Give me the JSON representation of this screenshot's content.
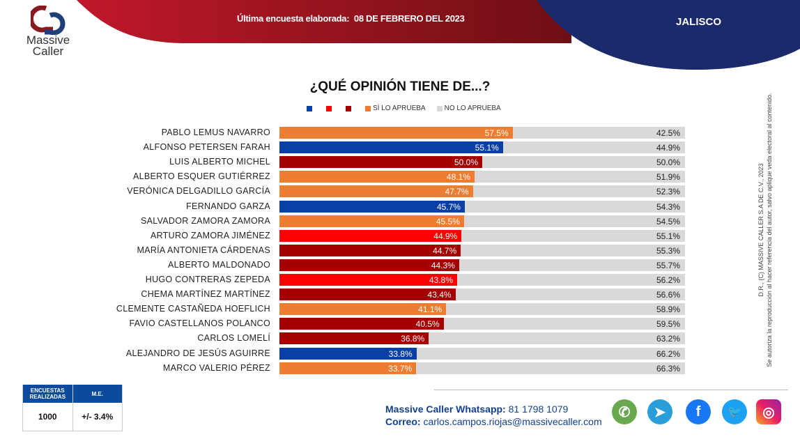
{
  "header": {
    "survey_label": "Última encuesta elaborada:",
    "survey_date": "08 DE FEBRERO DEL 2023",
    "state": "JALISCO"
  },
  "logo": {
    "line1": "Massive",
    "line2": "Caller"
  },
  "chart_data": {
    "type": "bar",
    "orientation": "horizontal",
    "stacked": true,
    "title": "¿QUÉ OPINIÓN TIENE DE...?",
    "legend": [
      "SÍ LO APRUEBA",
      "NO LO APRUEBA"
    ],
    "legend_placement": "top",
    "xlim": [
      0,
      100
    ],
    "categories": [
      "PABLO LEMUS NAVARRO",
      "ALFONSO PETERSEN FARAH",
      "LUIS ALBERTO MICHEL",
      "ALBERTO ESQUER GUTIÉRREZ",
      "VERÓNICA DELGADILLO GARCÍA",
      "FERNANDO GARZA",
      "SALVADOR ZAMORA ZAMORA",
      "ARTURO ZAMORA JIMÉNEZ",
      "MARÍA ANTONIETA CÁRDENAS",
      "ALBERTO MALDONADO",
      "HUGO CONTRERAS ZEPEDA",
      "CHEMA MARTÍNEZ MARTÍNEZ",
      "CLEMENTE CASTAÑEDA HOEFLICH",
      "FAVIO CASTELLANOS POLANCO",
      "CARLOS LOMELÍ",
      "ALEJANDRO DE JESÚS AGUIRRE",
      "MARCO VALERIO PÉREZ"
    ],
    "series": [
      {
        "name": "SÍ LO APRUEBA",
        "values": [
          57.5,
          55.1,
          50.0,
          48.1,
          47.7,
          45.7,
          45.5,
          44.9,
          44.7,
          44.3,
          43.8,
          43.4,
          41.1,
          40.5,
          36.8,
          33.8,
          33.7
        ],
        "colors": [
          "#ED7D31",
          "#0B3FA8",
          "#A50000",
          "#ED7D31",
          "#ED7D31",
          "#0B3FA8",
          "#ED7D31",
          "#FF0000",
          "#A50000",
          "#A50000",
          "#FF0000",
          "#A50000",
          "#ED7D31",
          "#A50000",
          "#A50000",
          "#0B3FA8",
          "#ED7D31"
        ]
      },
      {
        "name": "NO LO APRUEBA",
        "values": [
          42.5,
          44.9,
          50.0,
          51.9,
          52.3,
          54.3,
          54.5,
          55.1,
          55.3,
          55.7,
          56.2,
          56.6,
          58.9,
          59.5,
          63.2,
          66.2,
          66.3
        ],
        "color": "#D9D9D9"
      }
    ],
    "legend_colors": [
      "#0B3FA8",
      "#FF0000",
      "#A50000",
      "#ED7D31",
      "#D9D9D9"
    ]
  },
  "side_note": {
    "line1": "D.R., (C) MASSIVE CALLER S.A DE C.V., 2023",
    "line2": "Se autoriza la reproducción al hacer referencia del autor, salvo apliquе veda electoral al contenido."
  },
  "stats": {
    "h1": "ENCUESTAS REALIZADAS",
    "h2": "M.E.",
    "v1": "1000",
    "v2": "+/- 3.4%"
  },
  "contact": {
    "wa_label": "Massive Caller Whatsapp:",
    "wa_number": "81 1798 1079",
    "mail_label": "Correo:",
    "mail": "carlos.campos.riojas@massivecaller.com"
  },
  "social": [
    "whatsapp",
    "telegram",
    "facebook",
    "twitter",
    "instagram"
  ]
}
